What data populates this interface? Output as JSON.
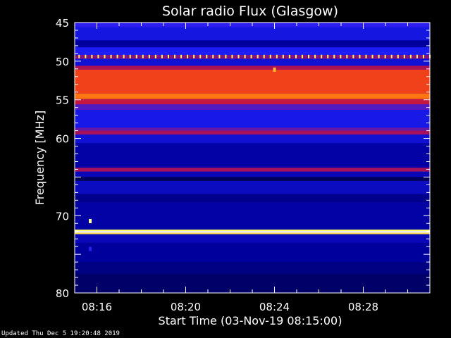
{
  "footer_text": "Updated Thu Dec  5 19:20:48 2019",
  "chart_data": {
    "type": "heatmap",
    "title": "Solar radio Flux (Glasgow)",
    "xlabel": "Start Time (03-Nov-19 08:15:00)",
    "ylabel": "Frequency [MHz]",
    "x_unit": "minutes after 08:15:00",
    "xlim": [
      0,
      16
    ],
    "ylim": [
      45,
      80
    ],
    "y_reversed": true,
    "x_ticks": [
      {
        "value": 1,
        "label": "08:16"
      },
      {
        "value": 5,
        "label": "08:20"
      },
      {
        "value": 9,
        "label": "08:24"
      },
      {
        "value": 13,
        "label": "08:28"
      }
    ],
    "y_ticks": [
      {
        "value": 45,
        "label": "45"
      },
      {
        "value": 50,
        "label": "50"
      },
      {
        "value": 55,
        "label": "55"
      },
      {
        "value": 60,
        "label": "60"
      },
      {
        "value": 70,
        "label": "70"
      },
      {
        "value": 80,
        "label": "80"
      }
    ],
    "colormap": [
      "#000020",
      "#0000a0",
      "#2020ff",
      "#a01060",
      "#e82020",
      "#ff8010",
      "#ffff60",
      "#ffffff"
    ],
    "background_color": "#1a1acc",
    "frequency_bands": [
      {
        "from": 45.0,
        "to": 45.6,
        "intensity": 0.3
      },
      {
        "from": 45.6,
        "to": 47.3,
        "intensity": 0.24
      },
      {
        "from": 47.3,
        "to": 48.2,
        "intensity": 0.14
      },
      {
        "from": 48.2,
        "to": 49.2,
        "intensity": 0.27
      },
      {
        "from": 49.2,
        "to": 49.7,
        "intensity": 0.4
      },
      {
        "from": 49.7,
        "to": 50.6,
        "intensity": 0.22
      },
      {
        "from": 50.6,
        "to": 51.1,
        "intensity": 0.45
      },
      {
        "from": 51.1,
        "to": 54.2,
        "intensity": 0.62
      },
      {
        "from": 54.2,
        "to": 54.9,
        "intensity": 0.7
      },
      {
        "from": 54.9,
        "to": 55.6,
        "intensity": 0.5
      },
      {
        "from": 55.6,
        "to": 56.3,
        "intensity": 0.34
      },
      {
        "from": 56.3,
        "to": 58.6,
        "intensity": 0.25
      },
      {
        "from": 58.6,
        "to": 59.0,
        "intensity": 0.36
      },
      {
        "from": 59.0,
        "to": 59.5,
        "intensity": 0.44
      },
      {
        "from": 59.5,
        "to": 60.6,
        "intensity": 0.22
      },
      {
        "from": 60.6,
        "to": 63.8,
        "intensity": 0.15
      },
      {
        "from": 63.8,
        "to": 64.3,
        "intensity": 0.44
      },
      {
        "from": 64.3,
        "to": 65.0,
        "intensity": 0.18
      },
      {
        "from": 65.0,
        "to": 65.5,
        "intensity": 0.06
      },
      {
        "from": 65.5,
        "to": 67.2,
        "intensity": 0.19
      },
      {
        "from": 67.2,
        "to": 68.3,
        "intensity": 0.12
      },
      {
        "from": 68.3,
        "to": 71.8,
        "intensity": 0.15
      },
      {
        "from": 71.8,
        "to": 72.0,
        "intensity": 0.86
      },
      {
        "from": 72.0,
        "to": 72.2,
        "intensity": 1.0
      },
      {
        "from": 72.2,
        "to": 72.4,
        "intensity": 0.82
      },
      {
        "from": 72.4,
        "to": 73.5,
        "intensity": 0.18
      },
      {
        "from": 73.5,
        "to": 76.0,
        "intensity": 0.14
      },
      {
        "from": 76.0,
        "to": 77.5,
        "intensity": 0.11
      },
      {
        "from": 77.5,
        "to": 80.0,
        "intensity": 0.08
      }
    ],
    "periodic_bursts": {
      "frequency": 49.4,
      "intensity": 0.86,
      "start": 0.2,
      "end": 16.0,
      "count": 56
    },
    "point_features": [
      {
        "time": 9.0,
        "frequency": 51.1,
        "intensity": 0.78
      },
      {
        "time": 0.7,
        "frequency": 70.7,
        "intensity": 0.92
      },
      {
        "time": 0.7,
        "frequency": 74.3,
        "intensity": 0.3
      }
    ]
  }
}
